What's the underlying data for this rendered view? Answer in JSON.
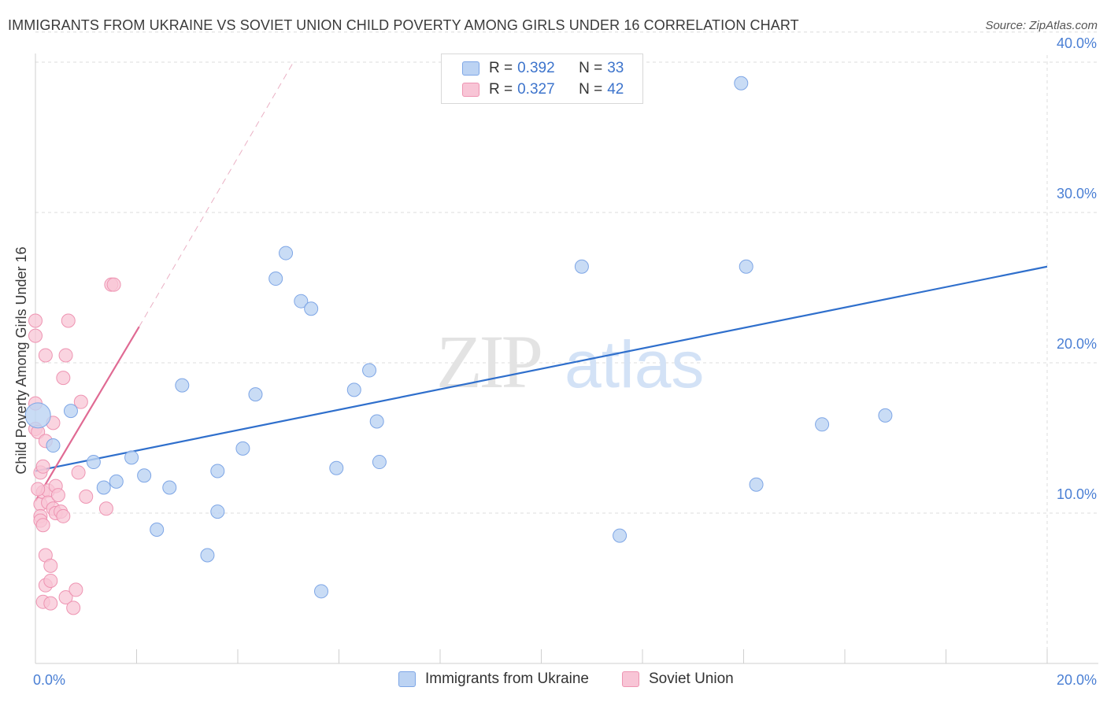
{
  "title": "IMMIGRANTS FROM UKRAINE VS SOVIET UNION CHILD POVERTY AMONG GIRLS UNDER 16 CORRELATION CHART",
  "source": "Source: ZipAtlas.com",
  "watermark": {
    "zip": "ZIP",
    "atlas": "atlas"
  },
  "legend": [
    {
      "r_label": "R = ",
      "r_value": "0.392",
      "n_label": "N = ",
      "n_value": "33"
    },
    {
      "r_label": "R = ",
      "r_value": "0.327",
      "n_label": "N = ",
      "n_value": "42"
    }
  ],
  "bottom_legend": [
    "Immigrants from Ukraine",
    "Soviet Union"
  ],
  "colors": {
    "ukraine_fill": "#bcd3f3",
    "ukraine_stroke": "#7ea6e6",
    "ukraine_line": "#2f6fcc",
    "soviet_fill": "#f8c5d6",
    "soviet_stroke": "#ee94b2",
    "soviet_line": "#e06a93",
    "grid": "#dcdcdc",
    "tick_text": "#4a7fd4"
  },
  "chart_data": {
    "type": "scatter",
    "xlabel": "",
    "ylabel": "Child Poverty Among Girls Under 16",
    "xlim": [
      0,
      20
    ],
    "ylim": [
      0,
      42
    ],
    "x_ticks": [
      "0.0%",
      "20.0%"
    ],
    "y_ticks": [
      {
        "value": 10,
        "label": "10.0%"
      },
      {
        "value": 20,
        "label": "20.0%"
      },
      {
        "value": 30,
        "label": "30.0%"
      },
      {
        "value": 40,
        "label": "40.0%"
      }
    ],
    "grid": true,
    "series": [
      {
        "name": "Immigrants from Ukraine",
        "r": 0.392,
        "n": 33,
        "trend": {
          "x": [
            0,
            20
          ],
          "y": [
            12.8,
            26.4
          ]
        },
        "points": [
          [
            0.05,
            16.5
          ],
          [
            0.35,
            14.5
          ],
          [
            0.7,
            16.8
          ],
          [
            1.15,
            13.4
          ],
          [
            1.35,
            11.7
          ],
          [
            1.6,
            12.1
          ],
          [
            1.9,
            13.7
          ],
          [
            2.15,
            12.5
          ],
          [
            2.4,
            8.9
          ],
          [
            2.65,
            11.7
          ],
          [
            2.9,
            18.5
          ],
          [
            3.4,
            7.2
          ],
          [
            3.6,
            10.1
          ],
          [
            3.6,
            12.8
          ],
          [
            4.1,
            14.3
          ],
          [
            4.35,
            17.9
          ],
          [
            4.75,
            25.6
          ],
          [
            4.95,
            27.3
          ],
          [
            5.25,
            24.1
          ],
          [
            5.45,
            23.6
          ],
          [
            5.65,
            4.8
          ],
          [
            5.95,
            13.0
          ],
          [
            6.3,
            18.2
          ],
          [
            6.6,
            19.5
          ],
          [
            6.75,
            16.1
          ],
          [
            6.8,
            13.4
          ],
          [
            10.8,
            26.4
          ],
          [
            11.55,
            8.5
          ],
          [
            13.95,
            38.6
          ],
          [
            14.05,
            26.4
          ],
          [
            14.25,
            11.9
          ],
          [
            15.55,
            15.9
          ],
          [
            16.8,
            16.5
          ]
        ]
      },
      {
        "name": "Soviet Union",
        "r": 0.327,
        "n": 42,
        "trend": {
          "x": [
            0,
            2.05
          ],
          "y": [
            10.8,
            22.4
          ]
        },
        "trend_ext": {
          "x": [
            2.05,
            5.1
          ],
          "y": [
            22.4,
            40.0
          ]
        },
        "points": [
          [
            0.0,
            22.8
          ],
          [
            0.0,
            21.8
          ],
          [
            0.0,
            17.3
          ],
          [
            0.0,
            15.6
          ],
          [
            0.05,
            15.4
          ],
          [
            0.1,
            12.7
          ],
          [
            0.1,
            10.6
          ],
          [
            0.1,
            9.8
          ],
          [
            0.1,
            9.5
          ],
          [
            0.15,
            9.2
          ],
          [
            0.15,
            4.1
          ],
          [
            0.15,
            13.1
          ],
          [
            0.15,
            11.4
          ],
          [
            0.2,
            20.5
          ],
          [
            0.2,
            14.8
          ],
          [
            0.2,
            7.2
          ],
          [
            0.2,
            5.2
          ],
          [
            0.25,
            11.5
          ],
          [
            0.25,
            10.7
          ],
          [
            0.3,
            5.5
          ],
          [
            0.3,
            6.5
          ],
          [
            0.3,
            4.0
          ],
          [
            0.35,
            10.3
          ],
          [
            0.35,
            16.0
          ],
          [
            0.4,
            11.8
          ],
          [
            0.4,
            10.0
          ],
          [
            0.45,
            11.2
          ],
          [
            0.5,
            10.1
          ],
          [
            0.55,
            19.0
          ],
          [
            0.55,
            9.8
          ],
          [
            0.6,
            4.4
          ],
          [
            0.6,
            20.5
          ],
          [
            0.65,
            22.8
          ],
          [
            0.75,
            3.7
          ],
          [
            0.8,
            4.9
          ],
          [
            0.85,
            12.7
          ],
          [
            0.9,
            17.4
          ],
          [
            1.0,
            11.1
          ],
          [
            1.4,
            10.3
          ],
          [
            1.5,
            25.2
          ],
          [
            1.55,
            25.2
          ],
          [
            0.05,
            11.6
          ]
        ]
      }
    ]
  }
}
